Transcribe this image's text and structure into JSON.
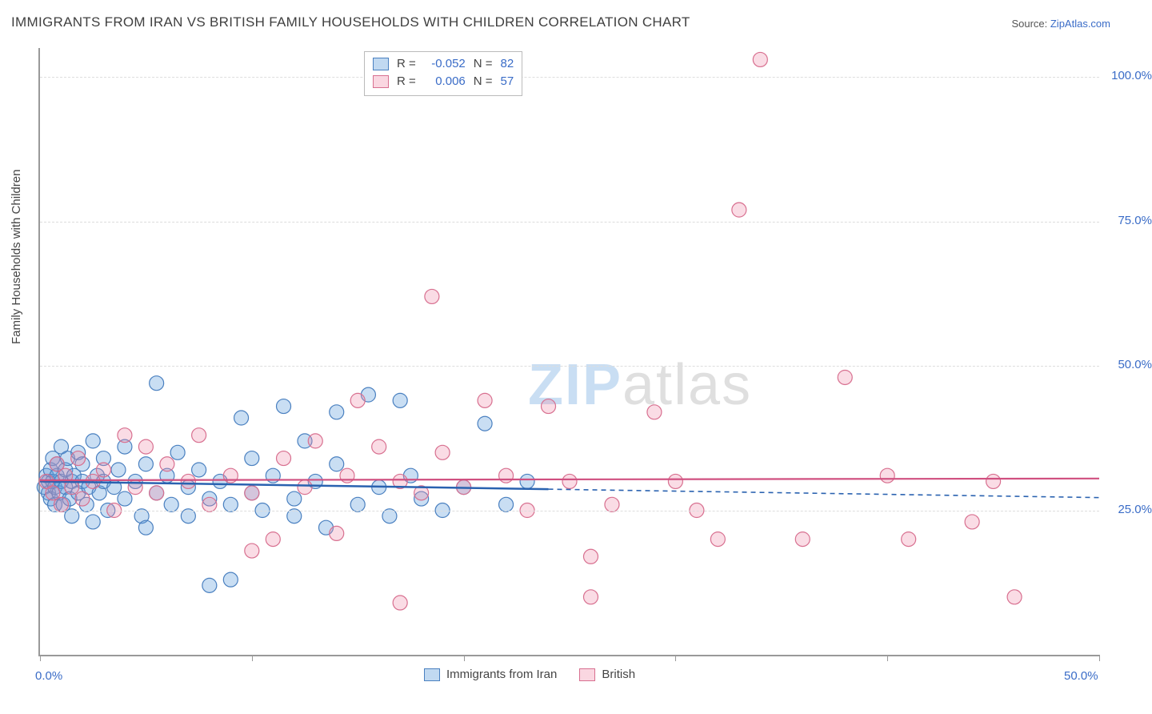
{
  "title": "IMMIGRANTS FROM IRAN VS BRITISH FAMILY HOUSEHOLDS WITH CHILDREN CORRELATION CHART",
  "source_prefix": "Source: ",
  "source_link": "ZipAtlas.com",
  "ylabel": "Family Households with Children",
  "watermark": {
    "big": "ZIP",
    "rest": "atlas"
  },
  "chart": {
    "type": "scatter",
    "background_color": "#ffffff",
    "grid_color": "#dddddd",
    "axis_color": "#999999",
    "tick_label_color": "#3a6cc7",
    "xlim": [
      0,
      50
    ],
    "ylim": [
      0,
      105
    ],
    "x_ticks": [
      0,
      10,
      20,
      30,
      40,
      50
    ],
    "x_tick_labels": [
      "0.0%",
      "",
      "",
      "",
      "",
      "50.0%"
    ],
    "y_grid": [
      25,
      50,
      75,
      100
    ],
    "y_tick_labels": [
      "25.0%",
      "50.0%",
      "75.0%",
      "100.0%"
    ],
    "marker_radius": 9,
    "marker_stroke_width": 1.2,
    "series": [
      {
        "name": "Immigrants from Iran",
        "short": "iran",
        "fill": "rgba(100,160,220,0.35)",
        "stroke": "#4a80c0",
        "R": "-0.052",
        "N": "82",
        "trend": {
          "y_start": 30.0,
          "y_end": 27.2,
          "solid_until_x": 24.0,
          "color": "#2a62b0",
          "width": 2.5
        },
        "points": [
          [
            0.2,
            29
          ],
          [
            0.3,
            31
          ],
          [
            0.4,
            28
          ],
          [
            0.4,
            30
          ],
          [
            0.5,
            27
          ],
          [
            0.5,
            32
          ],
          [
            0.6,
            30
          ],
          [
            0.6,
            34
          ],
          [
            0.7,
            26
          ],
          [
            0.7,
            29
          ],
          [
            0.8,
            31
          ],
          [
            0.8,
            33
          ],
          [
            0.9,
            28
          ],
          [
            1.0,
            30
          ],
          [
            1.0,
            36
          ],
          [
            1.1,
            26
          ],
          [
            1.2,
            29
          ],
          [
            1.2,
            32
          ],
          [
            1.3,
            34
          ],
          [
            1.4,
            27
          ],
          [
            1.5,
            30
          ],
          [
            1.5,
            24
          ],
          [
            1.6,
            31
          ],
          [
            1.8,
            35
          ],
          [
            1.8,
            28
          ],
          [
            2.0,
            30
          ],
          [
            2.0,
            33
          ],
          [
            2.2,
            26
          ],
          [
            2.3,
            29
          ],
          [
            2.5,
            37
          ],
          [
            2.5,
            23
          ],
          [
            2.7,
            31
          ],
          [
            2.8,
            28
          ],
          [
            3.0,
            34
          ],
          [
            3.0,
            30
          ],
          [
            3.2,
            25
          ],
          [
            3.5,
            29
          ],
          [
            3.7,
            32
          ],
          [
            4.0,
            27
          ],
          [
            4.0,
            36
          ],
          [
            4.5,
            30
          ],
          [
            4.8,
            24
          ],
          [
            5.0,
            33
          ],
          [
            5.0,
            22
          ],
          [
            5.5,
            28
          ],
          [
            5.5,
            47
          ],
          [
            6.0,
            31
          ],
          [
            6.2,
            26
          ],
          [
            6.5,
            35
          ],
          [
            7.0,
            29
          ],
          [
            7.0,
            24
          ],
          [
            7.5,
            32
          ],
          [
            8.0,
            27
          ],
          [
            8.0,
            12
          ],
          [
            8.5,
            30
          ],
          [
            9.0,
            26
          ],
          [
            9.0,
            13
          ],
          [
            9.5,
            41
          ],
          [
            10.0,
            28
          ],
          [
            10.0,
            34
          ],
          [
            10.5,
            25
          ],
          [
            11.0,
            31
          ],
          [
            11.5,
            43
          ],
          [
            12.0,
            27
          ],
          [
            12.0,
            24
          ],
          [
            12.5,
            37
          ],
          [
            13.0,
            30
          ],
          [
            13.5,
            22
          ],
          [
            14.0,
            33
          ],
          [
            14.0,
            42
          ],
          [
            15.0,
            26
          ],
          [
            15.5,
            45
          ],
          [
            16.0,
            29
          ],
          [
            16.5,
            24
          ],
          [
            17.0,
            44
          ],
          [
            17.5,
            31
          ],
          [
            18.0,
            27
          ],
          [
            19.0,
            25
          ],
          [
            20.0,
            29
          ],
          [
            21.0,
            40
          ],
          [
            22.0,
            26
          ],
          [
            23.0,
            30
          ]
        ]
      },
      {
        "name": "British",
        "short": "british",
        "fill": "rgba(240,140,170,0.3)",
        "stroke": "#d87090",
        "R": "0.006",
        "N": "57",
        "trend": {
          "y_start": 30.2,
          "y_end": 30.5,
          "solid_until_x": 50.0,
          "color": "#d05080",
          "width": 2.2
        },
        "points": [
          [
            0.3,
            30
          ],
          [
            0.6,
            28
          ],
          [
            0.8,
            33
          ],
          [
            1.0,
            26
          ],
          [
            1.2,
            31
          ],
          [
            1.5,
            29
          ],
          [
            1.8,
            34
          ],
          [
            2.0,
            27
          ],
          [
            2.5,
            30
          ],
          [
            3.0,
            32
          ],
          [
            3.5,
            25
          ],
          [
            4.0,
            38
          ],
          [
            4.5,
            29
          ],
          [
            5.0,
            36
          ],
          [
            5.5,
            28
          ],
          [
            6.0,
            33
          ],
          [
            7.0,
            30
          ],
          [
            7.5,
            38
          ],
          [
            8.0,
            26
          ],
          [
            9.0,
            31
          ],
          [
            10.0,
            28
          ],
          [
            10.0,
            18
          ],
          [
            11.0,
            20
          ],
          [
            11.5,
            34
          ],
          [
            12.5,
            29
          ],
          [
            13.0,
            37
          ],
          [
            14.0,
            21
          ],
          [
            14.5,
            31
          ],
          [
            15.0,
            44
          ],
          [
            16.0,
            36
          ],
          [
            17.0,
            30
          ],
          [
            17.0,
            9
          ],
          [
            18.0,
            28
          ],
          [
            18.5,
            62
          ],
          [
            19.0,
            35
          ],
          [
            20.0,
            29
          ],
          [
            21.0,
            44
          ],
          [
            22.0,
            31
          ],
          [
            23.0,
            25
          ],
          [
            24.0,
            43
          ],
          [
            25.0,
            30
          ],
          [
            26.0,
            17
          ],
          [
            26.0,
            10
          ],
          [
            27.0,
            26
          ],
          [
            29.0,
            42
          ],
          [
            30.0,
            30
          ],
          [
            31.0,
            25
          ],
          [
            32.0,
            20
          ],
          [
            33.0,
            77
          ],
          [
            34.0,
            103
          ],
          [
            36.0,
            20
          ],
          [
            38.0,
            48
          ],
          [
            40.0,
            31
          ],
          [
            41.0,
            20
          ],
          [
            44.0,
            23
          ],
          [
            45.0,
            30
          ],
          [
            46.0,
            10
          ]
        ]
      }
    ]
  },
  "legend_top": {
    "r_label": "R =",
    "n_label": "N ="
  },
  "legend_bottom": {
    "items": [
      "Immigrants from Iran",
      "British"
    ]
  }
}
